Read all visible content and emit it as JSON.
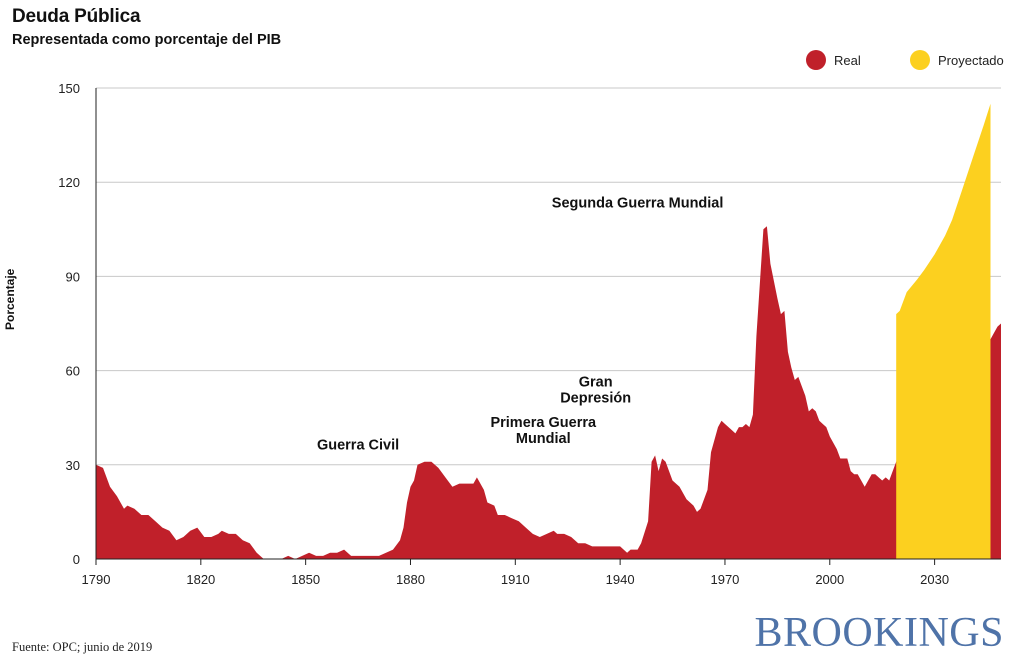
{
  "header": {
    "title": "Deuda Pública",
    "subtitle": "Representada como porcentaje del PIB"
  },
  "legend": {
    "real_label": "Real",
    "projected_label": "Proyectado",
    "real_color": "#c0202a",
    "projected_color": "#fcd01f"
  },
  "footer": {
    "source": "Fuente: OPC; junio de 2019",
    "brand": "BROOKINGS"
  },
  "chart_data": {
    "type": "area",
    "title": "Deuda Pública",
    "subtitle": "Representada como porcentaje del PIB",
    "xlabel": "",
    "ylabel": "Porcentaje",
    "xlim": [
      1790,
      2049
    ],
    "ylim": [
      0,
      150
    ],
    "x_ticks": [
      1790,
      1820,
      1850,
      1880,
      1910,
      1940,
      1970,
      2000,
      2030
    ],
    "y_ticks": [
      0,
      30,
      60,
      90,
      120,
      150
    ],
    "grid": "horizontal",
    "legend_position": "top-right",
    "series": [
      {
        "name": "Real",
        "color": "#c0202a",
        "points": [
          [
            1790,
            30
          ],
          [
            1792,
            29
          ],
          [
            1794,
            23
          ],
          [
            1796,
            20
          ],
          [
            1798,
            16
          ],
          [
            1799,
            17
          ],
          [
            1801,
            16
          ],
          [
            1803,
            14
          ],
          [
            1805,
            14
          ],
          [
            1807,
            12
          ],
          [
            1809,
            10
          ],
          [
            1811,
            9
          ],
          [
            1813,
            6
          ],
          [
            1815,
            7
          ],
          [
            1817,
            9
          ],
          [
            1819,
            10
          ],
          [
            1821,
            7
          ],
          [
            1823,
            7
          ],
          [
            1825,
            8
          ],
          [
            1826,
            9
          ],
          [
            1828,
            8
          ],
          [
            1830,
            8
          ],
          [
            1832,
            6
          ],
          [
            1834,
            5
          ],
          [
            1836,
            2
          ],
          [
            1838,
            0
          ],
          [
            1841,
            0
          ],
          [
            1843,
            0
          ],
          [
            1845,
            1
          ],
          [
            1847,
            0
          ],
          [
            1849,
            1
          ],
          [
            1851,
            2
          ],
          [
            1853,
            1
          ],
          [
            1855,
            1
          ],
          [
            1857,
            2
          ],
          [
            1859,
            2
          ],
          [
            1861,
            3
          ],
          [
            1863,
            1
          ],
          [
            1865,
            1
          ],
          [
            1867,
            1
          ],
          [
            1869,
            1
          ],
          [
            1871,
            1
          ],
          [
            1873,
            2
          ],
          [
            1875,
            3
          ],
          [
            1877,
            6
          ],
          [
            1878,
            10
          ],
          [
            1879,
            18
          ],
          [
            1880,
            23
          ],
          [
            1881,
            25
          ],
          [
            1882,
            30
          ],
          [
            1884,
            31
          ],
          [
            1886,
            31
          ],
          [
            1888,
            29
          ],
          [
            1890,
            26
          ],
          [
            1892,
            23
          ],
          [
            1894,
            24
          ],
          [
            1896,
            24
          ],
          [
            1898,
            24
          ],
          [
            1899,
            26
          ],
          [
            1901,
            22
          ],
          [
            1902,
            18
          ],
          [
            1904,
            17
          ],
          [
            1905,
            14
          ],
          [
            1907,
            14
          ],
          [
            1909,
            13
          ],
          [
            1911,
            12
          ],
          [
            1913,
            10
          ],
          [
            1915,
            8
          ],
          [
            1917,
            7
          ],
          [
            1919,
            8
          ],
          [
            1921,
            9
          ],
          [
            1922,
            8
          ],
          [
            1924,
            8
          ],
          [
            1926,
            7
          ],
          [
            1928,
            5
          ],
          [
            1930,
            5
          ],
          [
            1932,
            4
          ],
          [
            1934,
            4
          ],
          [
            1936,
            4
          ],
          [
            1938,
            4
          ],
          [
            1940,
            4
          ],
          [
            1942,
            2
          ],
          [
            1943,
            3
          ],
          [
            1945,
            3
          ],
          [
            1946,
            5
          ],
          [
            1948,
            12
          ],
          [
            1949,
            31
          ],
          [
            1950,
            33
          ],
          [
            1951,
            28
          ],
          [
            1952,
            32
          ],
          [
            1953,
            31
          ],
          [
            1955,
            25
          ],
          [
            1957,
            23
          ],
          [
            1959,
            19
          ],
          [
            1961,
            17
          ],
          [
            1962,
            15
          ],
          [
            1963,
            16
          ],
          [
            1965,
            22
          ],
          [
            1966,
            34
          ],
          [
            1968,
            42
          ],
          [
            1969,
            44
          ],
          [
            1970,
            43
          ],
          [
            1971,
            42
          ],
          [
            1973,
            40
          ],
          [
            1974,
            42
          ],
          [
            1975,
            42
          ],
          [
            1976,
            43
          ],
          [
            1977,
            42
          ],
          [
            1978,
            46
          ],
          [
            1979,
            71
          ],
          [
            1981,
            105
          ],
          [
            1982,
            106
          ],
          [
            1983,
            94
          ],
          [
            1985,
            83
          ],
          [
            1986,
            78
          ],
          [
            1987,
            79
          ],
          [
            1988,
            66
          ],
          [
            1989,
            61
          ],
          [
            1990,
            57
          ],
          [
            1991,
            58
          ],
          [
            1993,
            52
          ],
          [
            1994,
            47
          ],
          [
            1995,
            48
          ],
          [
            1996,
            47
          ],
          [
            1997,
            44
          ],
          [
            1998,
            43
          ],
          [
            1999,
            42
          ],
          [
            2000,
            39
          ],
          [
            2002,
            35
          ],
          [
            2003,
            32
          ],
          [
            2005,
            32
          ],
          [
            2006,
            28
          ],
          [
            2007,
            27
          ],
          [
            2008,
            27
          ],
          [
            2009,
            25
          ],
          [
            2010,
            23
          ],
          [
            2011,
            25
          ],
          [
            2012,
            27
          ],
          [
            2013,
            27
          ],
          [
            2015,
            25
          ],
          [
            2016,
            26
          ],
          [
            2017,
            25
          ],
          [
            2018,
            28
          ],
          [
            2019,
            31
          ],
          [
            2020,
            33
          ],
          [
            2022,
            37
          ],
          [
            2023,
            40
          ],
          [
            2024,
            40
          ],
          [
            2025,
            39
          ],
          [
            2026,
            41
          ],
          [
            2028,
            46
          ],
          [
            2029,
            48
          ],
          [
            2030,
            48
          ],
          [
            2031,
            48
          ],
          [
            2032,
            47
          ],
          [
            2034,
            43
          ],
          [
            2035,
            38
          ],
          [
            2036,
            34
          ],
          [
            2037,
            32
          ],
          [
            2038,
            33
          ],
          [
            2039,
            35
          ],
          [
            2040,
            36
          ],
          [
            2041,
            35
          ],
          [
            2042,
            36
          ],
          [
            2043,
            39
          ],
          [
            2044,
            52
          ],
          [
            2045,
            62
          ],
          [
            2046,
            70
          ],
          [
            2047,
            72
          ],
          [
            2048,
            74
          ],
          [
            2049,
            75
          ]
        ]
      },
      {
        "name": "Proyectado",
        "color": "#fcd01f",
        "points": [
          [
            2019,
            78
          ],
          [
            2020,
            79
          ],
          [
            2022,
            85
          ],
          [
            2025,
            89
          ],
          [
            2027,
            92
          ],
          [
            2030,
            97
          ],
          [
            2033,
            103
          ],
          [
            2035,
            108
          ],
          [
            2038,
            118
          ],
          [
            2041,
            128
          ],
          [
            2044,
            138
          ],
          [
            2046,
            145
          ]
        ]
      }
    ],
    "annotations": [
      {
        "lines": [
          "Guerra Civil"
        ],
        "x": 1865,
        "y": 33
      },
      {
        "lines": [
          "Primera Guerra",
          "Mundial"
        ],
        "x": 1918,
        "y": 35
      },
      {
        "lines": [
          "Gran",
          "Depresión"
        ],
        "x": 1933,
        "y": 48
      },
      {
        "lines": [
          "Segunda Guerra Mundial"
        ],
        "x": 1945,
        "y": 110
      }
    ]
  }
}
